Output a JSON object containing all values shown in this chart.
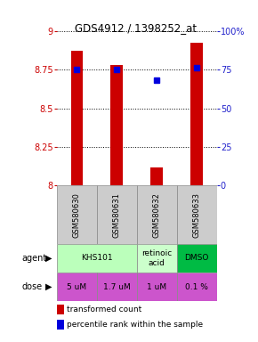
{
  "title": "GDS4912 / 1398252_at",
  "samples": [
    "GSM580630",
    "GSM580631",
    "GSM580632",
    "GSM580633"
  ],
  "bar_values": [
    8.87,
    8.78,
    8.12,
    8.92
  ],
  "percentile_values": [
    75,
    75,
    68,
    76
  ],
  "ylim": [
    8.0,
    9.0
  ],
  "yticks": [
    8.0,
    8.25,
    8.5,
    8.75,
    9.0
  ],
  "ytick_labels": [
    "8",
    "8.25",
    "8.5",
    "8.75",
    "9"
  ],
  "right_yticks": [
    0,
    25,
    50,
    75,
    100
  ],
  "right_ytick_labels": [
    "0",
    "25",
    "50",
    "75",
    "100%"
  ],
  "bar_color": "#cc0000",
  "percentile_color": "#0000dd",
  "left_tick_color": "#cc0000",
  "right_tick_color": "#2222cc",
  "agent_data": [
    {
      "cols": [
        0,
        1
      ],
      "name": "KHS101",
      "color": "#bbffbb"
    },
    {
      "cols": [
        2
      ],
      "name": "retinoic\nacid",
      "color": "#ccffcc"
    },
    {
      "cols": [
        3
      ],
      "name": "DMSO",
      "color": "#00bb44"
    }
  ],
  "dose_labels": [
    "5 uM",
    "1.7 uM",
    "1 uM",
    "0.1 %"
  ],
  "dose_color": "#cc55cc",
  "sample_bg_color": "#cccccc",
  "legend_bar_color": "#cc0000",
  "legend_dot_color": "#0000dd",
  "grid_color": "black"
}
